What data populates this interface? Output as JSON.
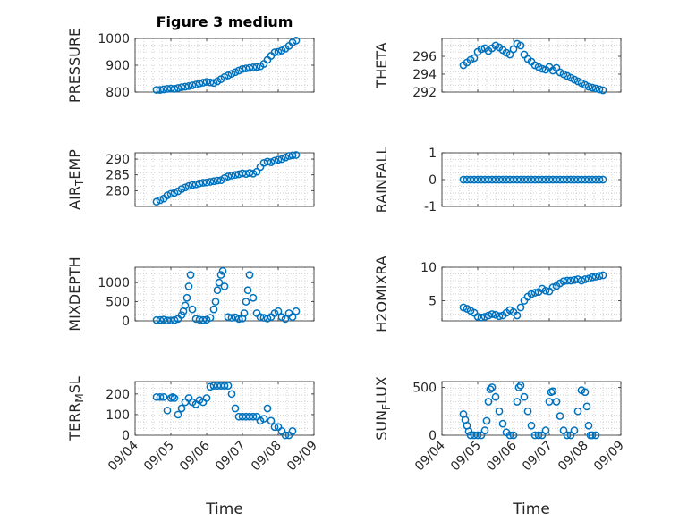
{
  "figure_title": "Figure 3 medium",
  "marker_color": "#0072BD",
  "chart_data": [
    {
      "type": "scatter",
      "ylabel": "PRESSURE",
      "ylim": [
        800,
        1000
      ],
      "yticks": [
        800,
        900,
        1000
      ],
      "xlim": [
        0,
        5
      ],
      "xticks": [
        0,
        1,
        2,
        3,
        4,
        5
      ],
      "xticklabels": [
        "09/04",
        "09/05",
        "09/06",
        "09/07",
        "09/08",
        "09/09"
      ],
      "x": [
        0.6,
        0.7,
        0.8,
        0.9,
        1.0,
        1.1,
        1.2,
        1.3,
        1.4,
        1.5,
        1.6,
        1.7,
        1.8,
        1.9,
        2.0,
        2.1,
        2.2,
        2.3,
        2.4,
        2.5,
        2.6,
        2.7,
        2.8,
        2.9,
        3.0,
        3.1,
        3.2,
        3.3,
        3.4,
        3.5,
        3.6,
        3.7,
        3.8,
        3.9,
        4.0,
        4.1,
        4.2,
        4.3,
        4.4,
        4.5
      ],
      "y": [
        808,
        808,
        810,
        812,
        813,
        812,
        815,
        818,
        820,
        822,
        825,
        828,
        832,
        835,
        838,
        836,
        834,
        840,
        848,
        856,
        862,
        868,
        874,
        880,
        886,
        888,
        890,
        892,
        894,
        896,
        905,
        920,
        935,
        948,
        950,
        955,
        962,
        972,
        985,
        992
      ]
    },
    {
      "type": "scatter",
      "ylabel": "THETA",
      "ylim": [
        292,
        298
      ],
      "yticks": [
        292,
        294,
        296
      ],
      "xlim": [
        0,
        5
      ],
      "xticks": [
        0,
        1,
        2,
        3,
        4,
        5
      ],
      "xticklabels": [
        "09/04",
        "09/05",
        "09/06",
        "09/07",
        "09/08",
        "09/09"
      ],
      "x": [
        0.6,
        0.7,
        0.8,
        0.9,
        1.0,
        1.1,
        1.2,
        1.3,
        1.4,
        1.5,
        1.6,
        1.7,
        1.8,
        1.9,
        2.0,
        2.1,
        2.2,
        2.3,
        2.4,
        2.5,
        2.6,
        2.7,
        2.8,
        2.9,
        3.0,
        3.1,
        3.2,
        3.3,
        3.4,
        3.5,
        3.6,
        3.7,
        3.8,
        3.9,
        4.0,
        4.1,
        4.2,
        4.3,
        4.4,
        4.5
      ],
      "y": [
        295.0,
        295.3,
        295.6,
        295.8,
        296.5,
        296.8,
        296.9,
        296.6,
        296.9,
        297.2,
        297.0,
        296.7,
        296.4,
        296.2,
        296.8,
        297.4,
        297.2,
        296.2,
        295.7,
        295.4,
        295.0,
        294.8,
        294.6,
        294.5,
        294.8,
        294.4,
        294.7,
        294.2,
        294.0,
        293.8,
        293.6,
        293.4,
        293.2,
        293.0,
        292.8,
        292.6,
        292.5,
        292.4,
        292.3,
        292.2
      ]
    },
    {
      "type": "scatter",
      "ylabel": "AIR_TEMP",
      "ylim": [
        275,
        292
      ],
      "yticks": [
        280,
        285,
        290
      ],
      "xlim": [
        0,
        5
      ],
      "xticks": [
        0,
        1,
        2,
        3,
        4,
        5
      ],
      "xticklabels": [
        "09/04",
        "09/05",
        "09/06",
        "09/07",
        "09/08",
        "09/09"
      ],
      "x": [
        0.6,
        0.7,
        0.8,
        0.9,
        1.0,
        1.1,
        1.2,
        1.3,
        1.4,
        1.5,
        1.6,
        1.7,
        1.8,
        1.9,
        2.0,
        2.1,
        2.2,
        2.3,
        2.4,
        2.5,
        2.6,
        2.7,
        2.8,
        2.9,
        3.0,
        3.1,
        3.2,
        3.3,
        3.4,
        3.5,
        3.6,
        3.7,
        3.8,
        3.9,
        4.0,
        4.1,
        4.2,
        4.3,
        4.4,
        4.5
      ],
      "y": [
        276.5,
        277.0,
        277.5,
        278.5,
        279.0,
        279.3,
        279.8,
        280.5,
        281.0,
        281.5,
        281.8,
        282.0,
        282.3,
        282.5,
        282.6,
        282.8,
        283.0,
        283.2,
        283.3,
        284.0,
        284.5,
        284.8,
        285.0,
        285.2,
        285.5,
        285.3,
        285.6,
        285.4,
        286.0,
        287.5,
        288.8,
        289.2,
        289.0,
        289.5,
        289.8,
        290.0,
        290.5,
        291.0,
        291.2,
        291.3
      ]
    },
    {
      "type": "scatter",
      "ylabel": "RAINFALL",
      "ylim": [
        -1,
        1
      ],
      "yticks": [
        -1,
        0,
        1
      ],
      "xlim": [
        0,
        5
      ],
      "xticks": [
        0,
        1,
        2,
        3,
        4,
        5
      ],
      "xticklabels": [
        "09/04",
        "09/05",
        "09/06",
        "09/07",
        "09/08",
        "09/09"
      ],
      "x": [
        0.6,
        0.7,
        0.8,
        0.9,
        1.0,
        1.1,
        1.2,
        1.3,
        1.4,
        1.5,
        1.6,
        1.7,
        1.8,
        1.9,
        2.0,
        2.1,
        2.2,
        2.3,
        2.4,
        2.5,
        2.6,
        2.7,
        2.8,
        2.9,
        3.0,
        3.1,
        3.2,
        3.3,
        3.4,
        3.5,
        3.6,
        3.7,
        3.8,
        3.9,
        4.0,
        4.1,
        4.2,
        4.3,
        4.4,
        4.5
      ],
      "y": [
        0,
        0,
        0,
        0,
        0,
        0,
        0,
        0,
        0,
        0,
        0,
        0,
        0,
        0,
        0,
        0,
        0,
        0,
        0,
        0,
        0,
        0,
        0,
        0,
        0,
        0,
        0,
        0,
        0,
        0,
        0,
        0,
        0,
        0,
        0,
        0,
        0,
        0,
        0,
        0
      ]
    },
    {
      "type": "scatter",
      "ylabel": "MIXDEPTH",
      "ylim": [
        0,
        1400
      ],
      "yticks": [
        0,
        500,
        1000
      ],
      "xlim": [
        0,
        5
      ],
      "xticks": [
        0,
        1,
        2,
        3,
        4,
        5
      ],
      "xticklabels": [
        "09/04",
        "09/05",
        "09/06",
        "09/07",
        "09/08",
        "09/09"
      ],
      "x": [
        0.6,
        0.7,
        0.8,
        0.9,
        1.0,
        1.1,
        1.2,
        1.3,
        1.35,
        1.4,
        1.45,
        1.5,
        1.55,
        1.6,
        1.7,
        1.8,
        1.9,
        2.0,
        2.1,
        2.2,
        2.25,
        2.3,
        2.35,
        2.4,
        2.45,
        2.5,
        2.6,
        2.7,
        2.8,
        2.9,
        3.0,
        3.05,
        3.1,
        3.15,
        3.2,
        3.3,
        3.4,
        3.5,
        3.6,
        3.7,
        3.8,
        3.9,
        4.0,
        4.1,
        4.2,
        4.3,
        4.4,
        4.5
      ],
      "y": [
        20,
        20,
        30,
        10,
        10,
        20,
        50,
        150,
        250,
        400,
        600,
        900,
        1200,
        300,
        50,
        30,
        20,
        30,
        80,
        300,
        500,
        800,
        1000,
        1200,
        1300,
        900,
        100,
        80,
        90,
        50,
        60,
        200,
        500,
        800,
        1200,
        600,
        200,
        100,
        80,
        60,
        100,
        200,
        250,
        100,
        50,
        200,
        100,
        250
      ]
    },
    {
      "type": "scatter",
      "ylabel": "H2OMIXRA",
      "ylim": [
        2,
        10
      ],
      "yticks": [
        5,
        10
      ],
      "xlim": [
        0,
        5
      ],
      "xticks": [
        0,
        1,
        2,
        3,
        4,
        5
      ],
      "xticklabels": [
        "09/04",
        "09/05",
        "09/06",
        "09/07",
        "09/08",
        "09/09"
      ],
      "x": [
        0.6,
        0.7,
        0.8,
        0.9,
        1.0,
        1.1,
        1.2,
        1.3,
        1.4,
        1.5,
        1.6,
        1.7,
        1.8,
        1.9,
        2.0,
        2.1,
        2.2,
        2.3,
        2.4,
        2.5,
        2.6,
        2.7,
        2.8,
        2.9,
        3.0,
        3.1,
        3.2,
        3.3,
        3.4,
        3.5,
        3.6,
        3.7,
        3.8,
        3.9,
        4.0,
        4.1,
        4.2,
        4.3,
        4.4,
        4.5
      ],
      "y": [
        4.0,
        3.8,
        3.5,
        3.2,
        2.6,
        2.5,
        2.6,
        2.8,
        3.0,
        2.9,
        2.7,
        2.8,
        3.2,
        3.6,
        3.3,
        2.8,
        4.0,
        5.0,
        5.6,
        6.0,
        6.2,
        6.3,
        6.8,
        6.5,
        6.4,
        7.0,
        7.2,
        7.6,
        7.9,
        8.0,
        8.0,
        8.1,
        8.2,
        8.0,
        8.2,
        8.3,
        8.5,
        8.6,
        8.7,
        8.8
      ]
    },
    {
      "type": "scatter",
      "ylabel": "TERR_MSL",
      "ylim": [
        0,
        260
      ],
      "yticks": [
        0,
        100,
        200
      ],
      "xlim": [
        0,
        5
      ],
      "xticks": [
        0,
        1,
        2,
        3,
        4,
        5
      ],
      "xticklabels": [
        "09/04",
        "09/05",
        "09/06",
        "09/07",
        "09/08",
        "09/09"
      ],
      "x": [
        0.6,
        0.7,
        0.8,
        0.9,
        1.0,
        1.05,
        1.1,
        1.2,
        1.3,
        1.4,
        1.5,
        1.6,
        1.7,
        1.8,
        1.9,
        2.0,
        2.1,
        2.2,
        2.3,
        2.4,
        2.5,
        2.6,
        2.7,
        2.8,
        2.9,
        3.0,
        3.1,
        3.2,
        3.3,
        3.4,
        3.5,
        3.6,
        3.7,
        3.8,
        3.9,
        4.0,
        4.1,
        4.2,
        4.3,
        4.4
      ],
      "y": [
        185,
        185,
        185,
        120,
        180,
        185,
        180,
        100,
        130,
        160,
        180,
        160,
        150,
        170,
        160,
        180,
        235,
        240,
        240,
        240,
        240,
        240,
        200,
        130,
        90,
        90,
        90,
        90,
        90,
        90,
        70,
        80,
        130,
        70,
        40,
        40,
        20,
        0,
        0,
        20
      ]
    },
    {
      "type": "scatter",
      "ylabel": "SUN_FLUX",
      "ylim": [
        0,
        560
      ],
      "yticks": [
        0,
        500
      ],
      "xlim": [
        0,
        5
      ],
      "xticks": [
        0,
        1,
        2,
        3,
        4,
        5
      ],
      "xticklabels": [
        "09/04",
        "09/05",
        "09/06",
        "09/07",
        "09/08",
        "09/09"
      ],
      "x": [
        0.6,
        0.65,
        0.7,
        0.75,
        0.8,
        0.9,
        1.0,
        1.1,
        1.2,
        1.25,
        1.3,
        1.35,
        1.4,
        1.5,
        1.6,
        1.7,
        1.8,
        1.9,
        2.0,
        2.1,
        2.15,
        2.2,
        2.3,
        2.4,
        2.5,
        2.6,
        2.7,
        2.8,
        2.9,
        3.0,
        3.05,
        3.1,
        3.2,
        3.3,
        3.4,
        3.5,
        3.6,
        3.7,
        3.8,
        3.9,
        4.0,
        4.05,
        4.1,
        4.15,
        4.2,
        4.3
      ],
      "y": [
        220,
        160,
        100,
        40,
        0,
        0,
        0,
        0,
        50,
        150,
        350,
        480,
        500,
        400,
        250,
        120,
        30,
        0,
        0,
        350,
        500,
        520,
        400,
        250,
        100,
        0,
        0,
        0,
        50,
        350,
        450,
        460,
        350,
        200,
        50,
        0,
        0,
        50,
        250,
        470,
        450,
        300,
        100,
        0,
        0,
        0
      ]
    }
  ],
  "xlabel": "Time"
}
